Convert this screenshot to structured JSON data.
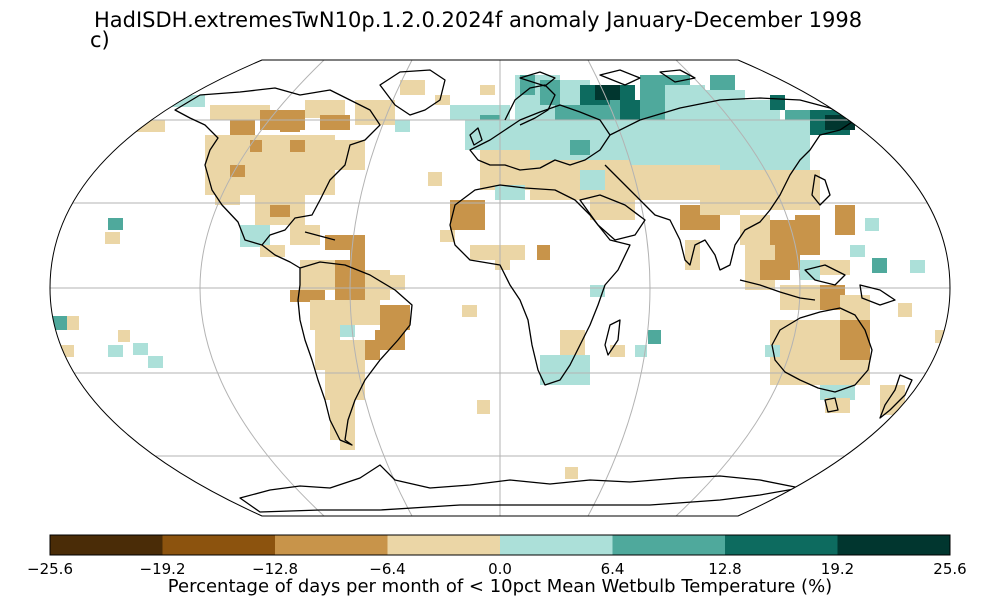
{
  "title": "HadISDH.extremesTwN10p.1.2.0.2024f anomaly January-December 1998",
  "panel_label": "c)",
  "colorbar": {
    "label": "Percentage of days per month of < 10pct Mean Wetbulb Temperature (%)",
    "ticks": [
      "−25.6",
      "−19.2",
      "−12.8",
      "−6.4",
      "0.0",
      "6.4",
      "12.8",
      "19.2",
      "25.6"
    ],
    "colors": [
      "#4a2c07",
      "#8c530e",
      "#c8944a",
      "#ebd6a6",
      "#ace0d9",
      "#4fa99c",
      "#0d6b5f",
      "#01362f"
    ]
  },
  "map": {
    "projection": "Robinson",
    "gridlines": true,
    "coastlines": true
  }
}
